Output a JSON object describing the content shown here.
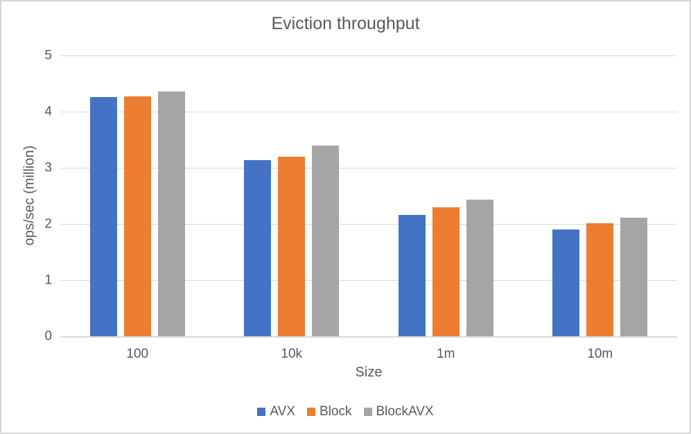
{
  "chart_data": {
    "type": "bar",
    "title": "Eviction throughput",
    "categories": [
      "100",
      "10k",
      "1m",
      "10m"
    ],
    "series": [
      {
        "name": "AVX",
        "color": "#4472C4",
        "values": [
          4.26,
          3.14,
          2.16,
          1.9
        ]
      },
      {
        "name": "Block",
        "color": "#ED7D31",
        "values": [
          4.27,
          3.2,
          2.3,
          2.01
        ]
      },
      {
        "name": "BlockAVX",
        "color": "#A5A5A5",
        "values": [
          4.36,
          3.39,
          2.43,
          2.11
        ]
      }
    ],
    "xlabel": "Size",
    "ylabel": "ops/sec (million)",
    "ylim": [
      0,
      5
    ],
    "yticks": [
      0,
      1,
      2,
      3,
      4,
      5
    ],
    "grid": true,
    "legend_position": "bottom",
    "colors": {
      "gridline": "#D9D9D9",
      "axis_line": "#D9D9D9",
      "text": "#595959",
      "background": "#FFFFFF",
      "border": "#D5D5D5"
    }
  }
}
